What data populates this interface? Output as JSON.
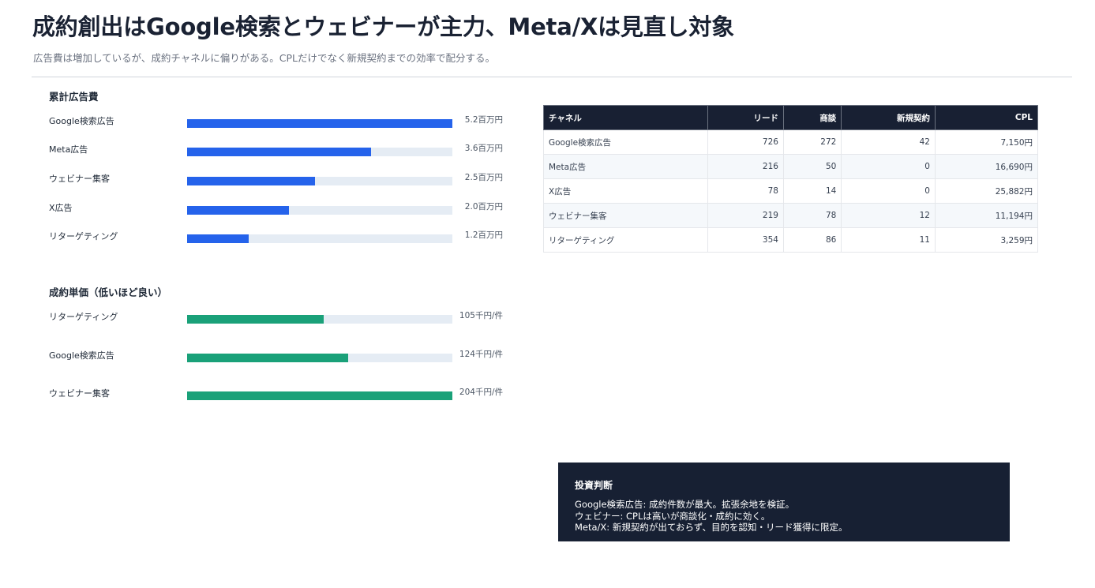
{
  "title": "成約創出はGoogle検索とウェビナーが主力、Meta/Xは見直し対象",
  "subtitle": "広告費は増加しているが、成約チャネルに偏りがある。CPLだけでなく新規契約までの効率で配分する。",
  "colors": {
    "spend_bar": "#2563eb",
    "cpa_bar": "#1aa179",
    "track": "#e5ecf4",
    "dark": "#172033"
  },
  "chart_data": [
    {
      "type": "bar",
      "title": "累計広告費",
      "categories": [
        "Google検索広告",
        "Meta広告",
        "ウェビナー集客",
        "X広告",
        "リターゲティング"
      ],
      "values": [
        5.2,
        3.6,
        2.5,
        2.0,
        1.2
      ],
      "value_labels": [
        "5.2百万円",
        "3.6百万円",
        "2.5百万円",
        "2.0百万円",
        "1.2百万円"
      ],
      "unit": "百万円",
      "xlim": [
        0,
        5.2
      ]
    },
    {
      "type": "bar",
      "title": "成約単価（低いほど良い）",
      "categories": [
        "リターゲティング",
        "Google検索広告",
        "ウェビナー集客"
      ],
      "values": [
        105,
        124,
        204
      ],
      "value_labels": [
        "105千円/件",
        "124千円/件",
        "204千円/件"
      ],
      "unit": "千円/件",
      "xlim": [
        0,
        204
      ]
    },
    {
      "type": "table",
      "columns": [
        "チャネル",
        "リード",
        "商談",
        "新規契約",
        "CPL"
      ],
      "rows": [
        [
          "Google検索広告",
          "726",
          "272",
          "42",
          "7,150円"
        ],
        [
          "Meta広告",
          "216",
          "50",
          "0",
          "16,690円"
        ],
        [
          "X広告",
          "78",
          "14",
          "0",
          "25,882円"
        ],
        [
          "ウェビナー集客",
          "219",
          "78",
          "12",
          "11,194円"
        ],
        [
          "リターゲティング",
          "354",
          "86",
          "11",
          "3,259円"
        ]
      ]
    }
  ],
  "decision": {
    "title": "投資判断",
    "lines": [
      "Google検索広告: 成約件数が最大。拡張余地を検証。",
      "ウェビナー: CPLは高いが商談化・成約に効く。",
      "Meta/X: 新規契約が出ておらず、目的を認知・リード獲得に限定。"
    ]
  }
}
